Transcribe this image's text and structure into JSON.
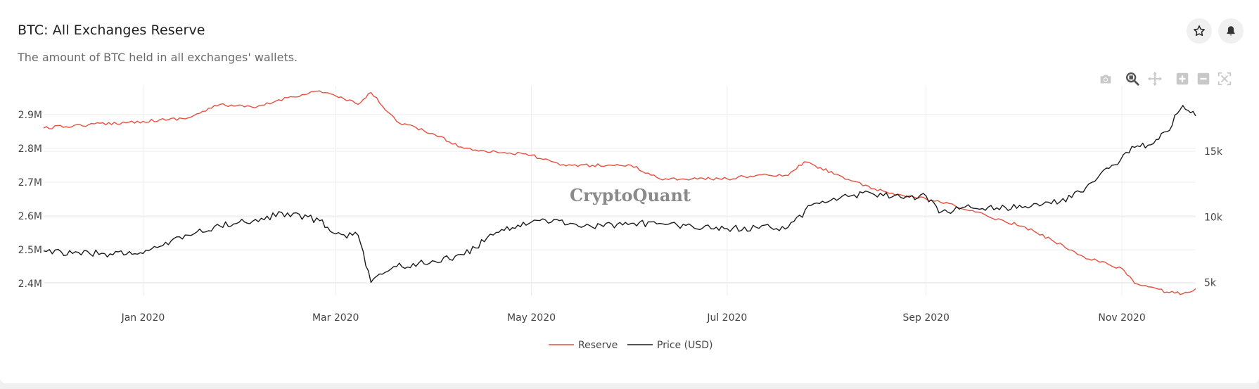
{
  "header": {
    "title": "BTC: All Exchanges Reserve",
    "subtitle": "The amount of BTC held in all exchanges' wallets."
  },
  "actions": {
    "star_icon": "star-icon",
    "bell_icon": "bell-icon"
  },
  "modebar": [
    "camera-icon",
    "zoom-icon",
    "pan-icon",
    "zoom-in-icon",
    "zoom-out-icon",
    "autoscale-icon"
  ],
  "colors": {
    "reserve": "#e5503f",
    "price": "#1c1c1c",
    "grid": "#eeeeee",
    "watermark": "#8a8a8a"
  },
  "watermark": "CryptoQuant",
  "chart_data": {
    "type": "line",
    "title": "BTC: All Exchanges Reserve",
    "x_range": [
      "2019-12-01",
      "2020-11-24"
    ],
    "x_ticks": [
      "Jan 2020",
      "Mar 2020",
      "May 2020",
      "Jul 2020",
      "Sep 2020",
      "Nov 2020"
    ],
    "y_left": {
      "label": "",
      "range": [
        2.365,
        2.985
      ],
      "unit": "M BTC",
      "ticks": [
        "2.4M",
        "2.5M",
        "2.6M",
        "2.7M",
        "2.8M",
        "2.9M"
      ]
    },
    "y_right": {
      "label": "",
      "range": [
        4000,
        20000
      ],
      "unit": "USD",
      "ticks": [
        "5k",
        "10k",
        "15k"
      ]
    },
    "legend": {
      "placement": "bottom-center"
    },
    "series": [
      {
        "name": "Reserve",
        "axis": "left",
        "x": [
          "2019-12-01",
          "2019-12-15",
          "2020-01-01",
          "2020-01-15",
          "2020-01-25",
          "2020-02-05",
          "2020-02-15",
          "2020-02-25",
          "2020-03-01",
          "2020-03-08",
          "2020-03-12",
          "2020-03-20",
          "2020-04-01",
          "2020-04-10",
          "2020-04-20",
          "2020-05-01",
          "2020-05-10",
          "2020-05-20",
          "2020-06-01",
          "2020-06-10",
          "2020-06-20",
          "2020-07-01",
          "2020-07-10",
          "2020-07-20",
          "2020-07-25",
          "2020-08-05",
          "2020-08-15",
          "2020-08-25",
          "2020-09-01",
          "2020-09-10",
          "2020-09-20",
          "2020-10-01",
          "2020-10-10",
          "2020-10-20",
          "2020-11-01",
          "2020-11-05",
          "2020-11-10",
          "2020-11-15",
          "2020-11-20",
          "2020-11-24"
        ],
        "values": [
          2.86,
          2.87,
          2.88,
          2.89,
          2.93,
          2.92,
          2.95,
          2.97,
          2.955,
          2.93,
          2.965,
          2.88,
          2.84,
          2.8,
          2.79,
          2.78,
          2.75,
          2.75,
          2.75,
          2.71,
          2.71,
          2.71,
          2.72,
          2.72,
          2.76,
          2.72,
          2.68,
          2.66,
          2.65,
          2.63,
          2.6,
          2.57,
          2.53,
          2.48,
          2.445,
          2.4,
          2.39,
          2.375,
          2.37,
          2.385
        ]
      },
      {
        "name": "Price (USD)",
        "axis": "right",
        "x": [
          "2019-12-01",
          "2019-12-10",
          "2019-12-20",
          "2020-01-01",
          "2020-01-15",
          "2020-01-25",
          "2020-02-05",
          "2020-02-15",
          "2020-02-25",
          "2020-03-01",
          "2020-03-08",
          "2020-03-12",
          "2020-03-20",
          "2020-04-01",
          "2020-04-10",
          "2020-04-20",
          "2020-05-01",
          "2020-05-08",
          "2020-05-20",
          "2020-06-01",
          "2020-06-10",
          "2020-06-20",
          "2020-07-01",
          "2020-07-10",
          "2020-07-20",
          "2020-07-28",
          "2020-08-05",
          "2020-08-15",
          "2020-08-25",
          "2020-09-01",
          "2020-09-05",
          "2020-09-15",
          "2020-10-01",
          "2020-10-10",
          "2020-10-20",
          "2020-10-28",
          "2020-11-05",
          "2020-11-10",
          "2020-11-15",
          "2020-11-20",
          "2020-11-24"
        ],
        "values": [
          7400,
          7200,
          7200,
          7200,
          8600,
          9300,
          9800,
          10300,
          9700,
          8700,
          8600,
          5000,
          6200,
          6600,
          7100,
          8800,
          9600,
          9800,
          9200,
          9500,
          9500,
          9300,
          9100,
          9200,
          9200,
          11000,
          11400,
          11800,
          11400,
          11600,
          10300,
          10700,
          10700,
          11000,
          11900,
          13700,
          15300,
          15500,
          16500,
          18500,
          17700
        ]
      }
    ]
  }
}
